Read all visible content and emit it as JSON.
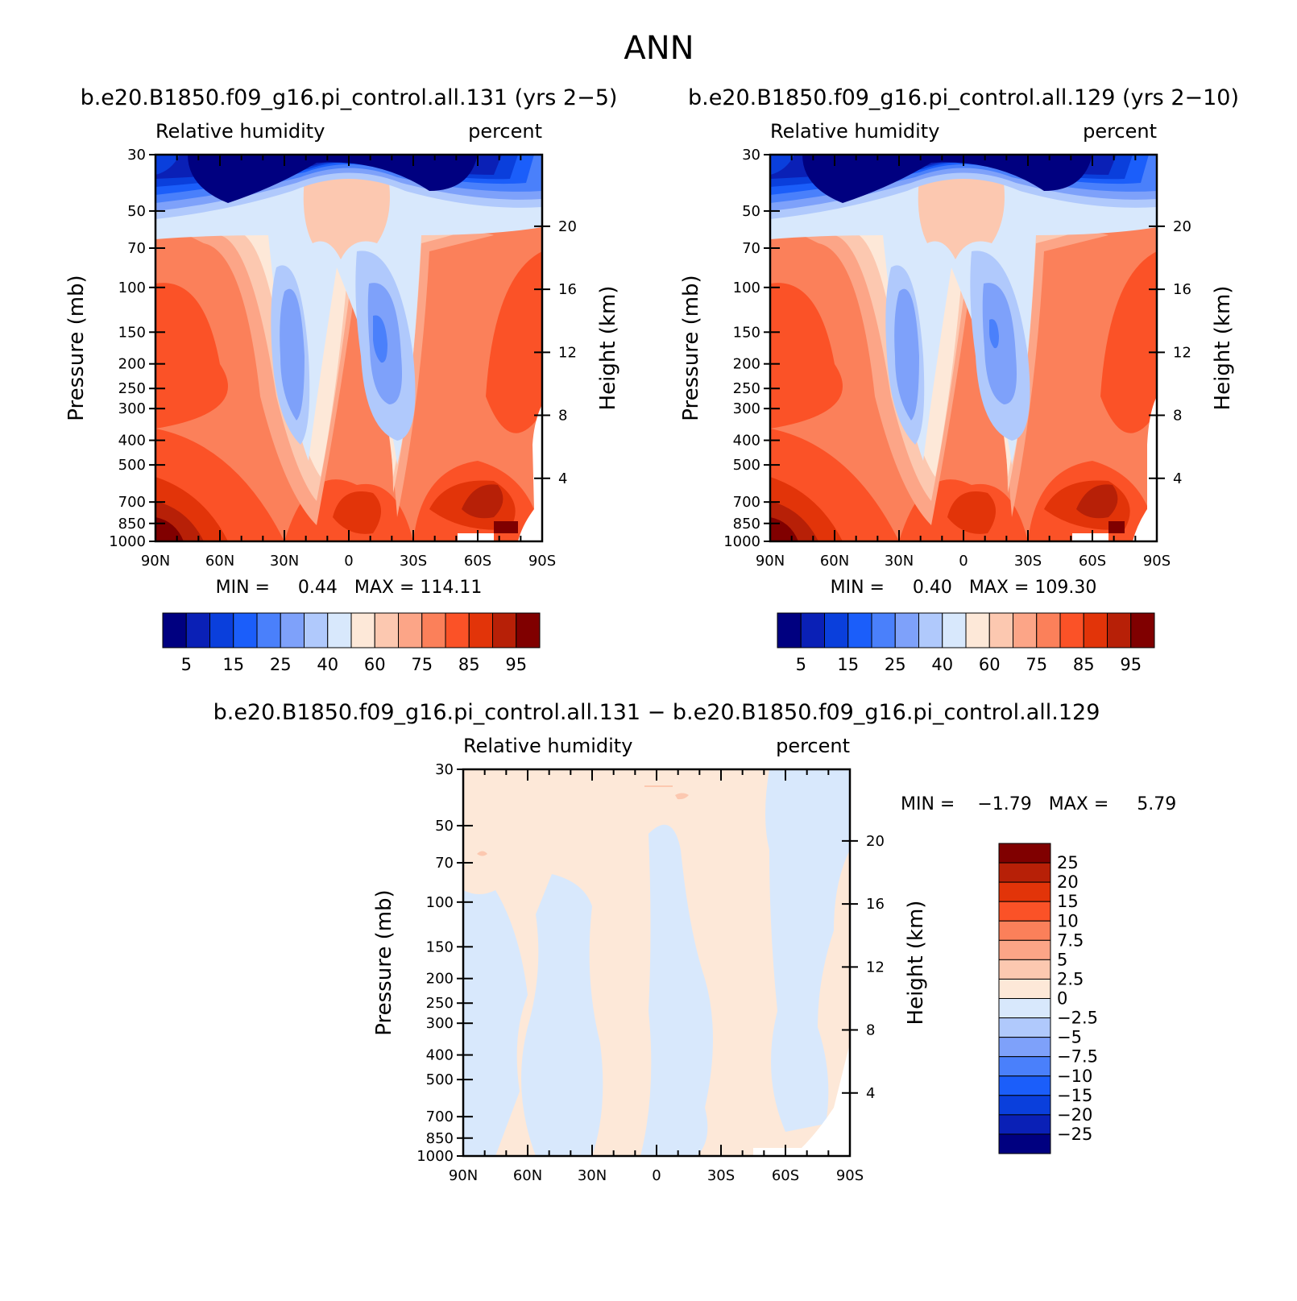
{
  "figure": {
    "title": "ANN",
    "labelbar_colors": [
      "#000080",
      "#0a20b6",
      "#0a3fdc",
      "#1b5efa",
      "#4a80fb",
      "#7ea1fa",
      "#b0c9fc",
      "#d8e8fc",
      "#fde8d8",
      "#fcc8b0",
      "#fca587",
      "#fb805a",
      "#fb5227",
      "#e23409",
      "#b72007",
      "#800000"
    ],
    "diff_colors": [
      "#000080",
      "#0a20b6",
      "#0a3fdc",
      "#1b5efa",
      "#4a80fb",
      "#7ea1fa",
      "#b0c9fc",
      "#d8e8fc",
      "#fde8d8",
      "#fcc8b0",
      "#fca587",
      "#fb805a",
      "#fb5227",
      "#e23409",
      "#b72007",
      "#800000"
    ]
  },
  "panels": {
    "p1": {
      "case": "b.e20.B1850.f09_g16.pi_control.all.131 (yrs 2−5)",
      "variable": "Relative humidity",
      "units": "percent",
      "min_text": "MIN =     0.44   MAX = 114.11"
    },
    "p2": {
      "case": "b.e20.B1850.f09_g16.pi_control.all.129 (yrs 2−10)",
      "variable": "Relative humidity",
      "units": "percent",
      "min_text": "MIN =     0.40   MAX = 109.30"
    },
    "p3": {
      "case": "b.e20.B1850.f09_g16.pi_control.all.131 − b.e20.B1850.f09_g16.pi_control.all.129",
      "variable": "Relative humidity",
      "units": "percent",
      "min_text": "MIN =    −1.79   MAX =     5.79"
    }
  },
  "chart_data": [
    {
      "type": "heatmap",
      "title": "b.e20.B1850.f09_g16.pi_control.all.131 (yrs 2−5)",
      "subtitle_left": "Relative humidity",
      "subtitle_right": "percent",
      "xlabel": "",
      "ylabel": "Pressure (mb)",
      "ylabel_right": "Height (km)",
      "x_ticks": [
        "90N",
        "60N",
        "30N",
        "0",
        "30S",
        "60S",
        "90S"
      ],
      "x_range": [
        90,
        -90
      ],
      "y_ticks": [
        30,
        50,
        70,
        100,
        150,
        200,
        250,
        300,
        400,
        500,
        700,
        850,
        1000
      ],
      "y_range": [
        30,
        1000
      ],
      "y_right_ticks": [
        20,
        16,
        12,
        8,
        4
      ],
      "levels": [
        5,
        10,
        15,
        20,
        25,
        30,
        40,
        50,
        60,
        70,
        75,
        80,
        85,
        90,
        95
      ],
      "legend_labels": [
        "5",
        "15",
        "25",
        "40",
        "60",
        "75",
        "85",
        "95"
      ],
      "min": 0.44,
      "max": 114.11
    },
    {
      "type": "heatmap",
      "title": "b.e20.B1850.f09_g16.pi_control.all.129 (yrs 2−10)",
      "subtitle_left": "Relative humidity",
      "subtitle_right": "percent",
      "xlabel": "",
      "ylabel": "Pressure (mb)",
      "ylabel_right": "Height (km)",
      "x_ticks": [
        "90N",
        "60N",
        "30N",
        "0",
        "30S",
        "60S",
        "90S"
      ],
      "x_range": [
        90,
        -90
      ],
      "y_ticks": [
        30,
        50,
        70,
        100,
        150,
        200,
        250,
        300,
        400,
        500,
        700,
        850,
        1000
      ],
      "y_range": [
        30,
        1000
      ],
      "y_right_ticks": [
        20,
        16,
        12,
        8,
        4
      ],
      "levels": [
        5,
        10,
        15,
        20,
        25,
        30,
        40,
        50,
        60,
        70,
        75,
        80,
        85,
        90,
        95
      ],
      "legend_labels": [
        "5",
        "15",
        "25",
        "40",
        "60",
        "75",
        "85",
        "95"
      ],
      "min": 0.4,
      "max": 109.3
    },
    {
      "type": "heatmap",
      "title": "b.e20.B1850.f09_g16.pi_control.all.131 − b.e20.B1850.f09_g16.pi_control.all.129",
      "subtitle_left": "Relative humidity",
      "subtitle_right": "percent",
      "xlabel": "",
      "ylabel": "Pressure (mb)",
      "ylabel_right": "Height (km)",
      "x_ticks": [
        "90N",
        "60N",
        "30N",
        "0",
        "30S",
        "60S",
        "90S"
      ],
      "x_range": [
        90,
        -90
      ],
      "y_ticks": [
        30,
        50,
        70,
        100,
        150,
        200,
        250,
        300,
        400,
        500,
        700,
        850,
        1000
      ],
      "y_range": [
        30,
        1000
      ],
      "y_right_ticks": [
        20,
        16,
        12,
        8,
        4
      ],
      "levels": [
        -25,
        -20,
        -15,
        -10,
        -7.5,
        -5,
        -2.5,
        0,
        2.5,
        5,
        7.5,
        10,
        15,
        20,
        25
      ],
      "legend_labels": [
        "25",
        "20",
        "15",
        "10",
        "7.5",
        "5",
        "2.5",
        "0",
        "−2.5",
        "−5",
        "−7.5",
        "−10",
        "−15",
        "−20",
        "−25"
      ],
      "min": -1.79,
      "max": 5.79
    }
  ]
}
